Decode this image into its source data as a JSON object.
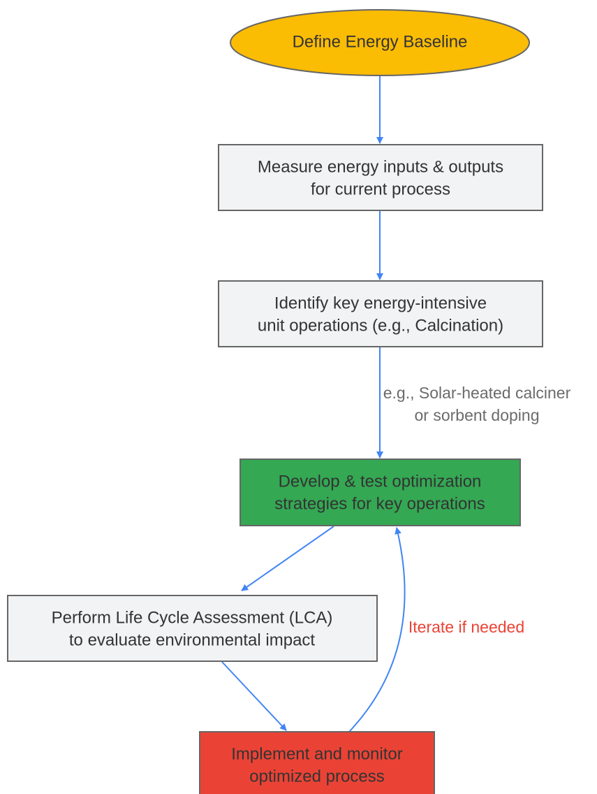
{
  "nodes": [
    {
      "lines": [
        "Define Energy Baseline"
      ]
    },
    {
      "lines": [
        "Measure energy inputs & outputs",
        "for current process"
      ]
    },
    {
      "lines": [
        "Identify key energy-intensive",
        "unit operations (e.g., Calcination)"
      ]
    },
    {
      "lines": [
        "Develop & test optimization",
        "strategies for key operations"
      ]
    },
    {
      "lines": [
        "Perform Life Cycle Assessment (LCA)",
        "to evaluate environmental impact"
      ]
    },
    {
      "lines": [
        "Implement and monitor",
        "optimized process"
      ]
    }
  ],
  "edges": [
    {
      "label": [
        "e.g., Solar-heated calciner",
        "or sorbent doping"
      ]
    },
    {
      "label": [
        "Iterate if needed"
      ]
    }
  ]
}
